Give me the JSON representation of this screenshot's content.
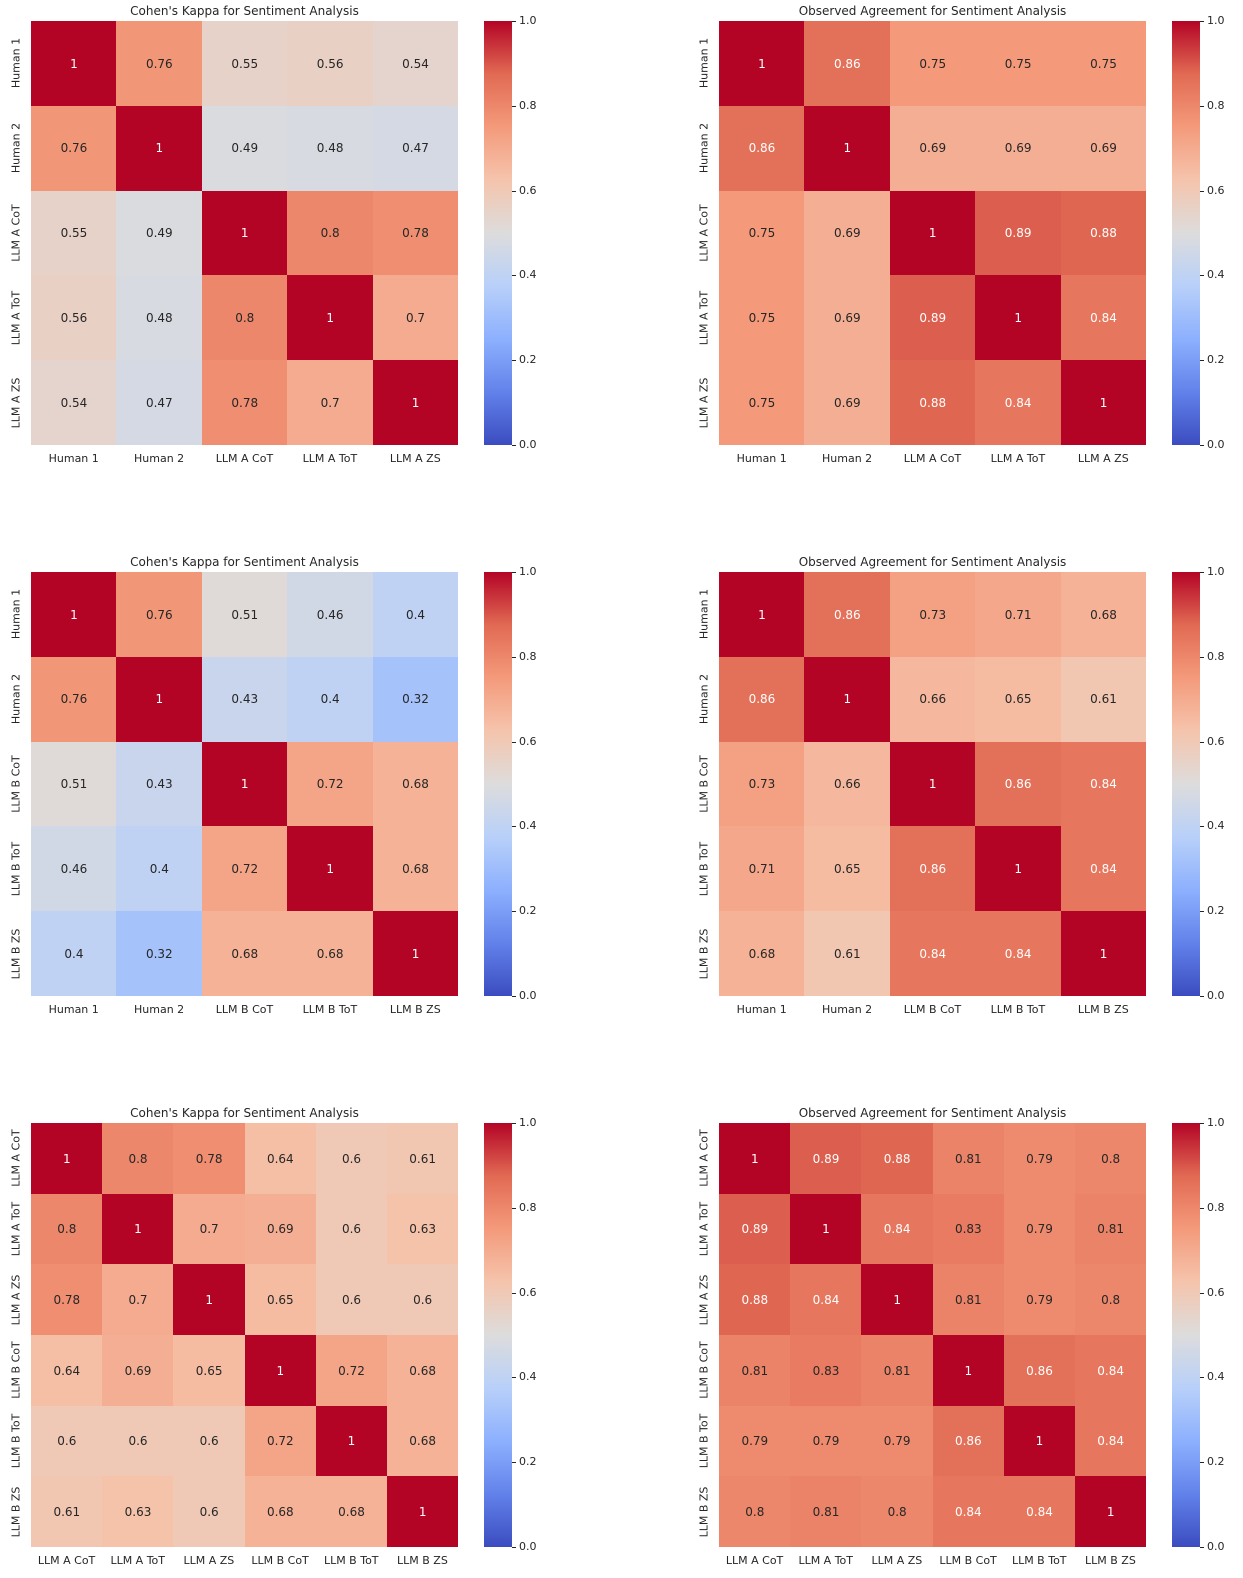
{
  "chart_data": [
    {
      "type": "heatmap",
      "title": "Cohen's Kappa for Sentiment Analysis",
      "row_labels": [
        "Human 1",
        "Human 2",
        "LLM A CoT",
        "LLM A ToT",
        "LLM A ZS"
      ],
      "col_labels": [
        "Human 1",
        "Human 2",
        "LLM A CoT",
        "LLM A ToT",
        "LLM A ZS"
      ],
      "values": [
        [
          1,
          0.76,
          0.55,
          0.56,
          0.54
        ],
        [
          0.76,
          1,
          0.49,
          0.48,
          0.47
        ],
        [
          0.55,
          0.49,
          1,
          0.8,
          0.78
        ],
        [
          0.56,
          0.48,
          0.8,
          1,
          0.7
        ],
        [
          0.54,
          0.47,
          0.78,
          0.7,
          1
        ]
      ],
      "colormap": "coolwarm",
      "vmin": 0,
      "vmax": 1,
      "colorbar_ticks": [
        "0.0",
        "0.2",
        "0.4",
        "0.6",
        "0.8",
        "1.0"
      ]
    },
    {
      "type": "heatmap",
      "title": "Observed Agreement for Sentiment Analysis",
      "row_labels": [
        "Human 1",
        "Human 2",
        "LLM A CoT",
        "LLM A ToT",
        "LLM A ZS"
      ],
      "col_labels": [
        "Human 1",
        "Human 2",
        "LLM A CoT",
        "LLM A ToT",
        "LLM A ZS"
      ],
      "values": [
        [
          1,
          0.86,
          0.75,
          0.75,
          0.75
        ],
        [
          0.86,
          1,
          0.69,
          0.69,
          0.69
        ],
        [
          0.75,
          0.69,
          1,
          0.89,
          0.88
        ],
        [
          0.75,
          0.69,
          0.89,
          1,
          0.84
        ],
        [
          0.75,
          0.69,
          0.88,
          0.84,
          1
        ]
      ],
      "colormap": "coolwarm",
      "vmin": 0,
      "vmax": 1,
      "colorbar_ticks": [
        "0.0",
        "0.2",
        "0.4",
        "0.6",
        "0.8",
        "1.0"
      ]
    },
    {
      "type": "heatmap",
      "title": "Cohen's Kappa for Sentiment Analysis",
      "row_labels": [
        "Human 1",
        "Human 2",
        "LLM B CoT",
        "LLM B ToT",
        "LLM B ZS"
      ],
      "col_labels": [
        "Human 1",
        "Human 2",
        "LLM B CoT",
        "LLM B ToT",
        "LLM B ZS"
      ],
      "values": [
        [
          1,
          0.76,
          0.51,
          0.46,
          0.4
        ],
        [
          0.76,
          1,
          0.43,
          0.4,
          0.32
        ],
        [
          0.51,
          0.43,
          1,
          0.72,
          0.68
        ],
        [
          0.46,
          0.4,
          0.72,
          1,
          0.68
        ],
        [
          0.4,
          0.32,
          0.68,
          0.68,
          1
        ]
      ],
      "colormap": "coolwarm",
      "vmin": 0,
      "vmax": 1,
      "colorbar_ticks": [
        "0.0",
        "0.2",
        "0.4",
        "0.6",
        "0.8",
        "1.0"
      ]
    },
    {
      "type": "heatmap",
      "title": "Observed Agreement for Sentiment Analysis",
      "row_labels": [
        "Human 1",
        "Human 2",
        "LLM B CoT",
        "LLM B ToT",
        "LLM B ZS"
      ],
      "col_labels": [
        "Human 1",
        "Human 2",
        "LLM B CoT",
        "LLM B ToT",
        "LLM B ZS"
      ],
      "values": [
        [
          1,
          0.86,
          0.73,
          0.71,
          0.68
        ],
        [
          0.86,
          1,
          0.66,
          0.65,
          0.61
        ],
        [
          0.73,
          0.66,
          1,
          0.86,
          0.84
        ],
        [
          0.71,
          0.65,
          0.86,
          1,
          0.84
        ],
        [
          0.68,
          0.61,
          0.84,
          0.84,
          1
        ]
      ],
      "colormap": "coolwarm",
      "vmin": 0,
      "vmax": 1,
      "colorbar_ticks": [
        "0.0",
        "0.2",
        "0.4",
        "0.6",
        "0.8",
        "1.0"
      ]
    },
    {
      "type": "heatmap",
      "title": "Cohen's Kappa for Sentiment Analysis",
      "row_labels": [
        "LLM A CoT",
        "LLM A ToT",
        "LLM A ZS",
        "LLM B CoT",
        "LLM B ToT",
        "LLM B ZS"
      ],
      "col_labels": [
        "LLM A CoT",
        "LLM A ToT",
        "LLM A ZS",
        "LLM B CoT",
        "LLM B ToT",
        "LLM B ZS"
      ],
      "values": [
        [
          1,
          0.8,
          0.78,
          0.64,
          0.6,
          0.61
        ],
        [
          0.8,
          1,
          0.7,
          0.69,
          0.6,
          0.63
        ],
        [
          0.78,
          0.7,
          1,
          0.65,
          0.6,
          0.6
        ],
        [
          0.64,
          0.69,
          0.65,
          1,
          0.72,
          0.68
        ],
        [
          0.6,
          0.6,
          0.6,
          0.72,
          1,
          0.68
        ],
        [
          0.61,
          0.63,
          0.6,
          0.68,
          0.68,
          1
        ]
      ],
      "colormap": "coolwarm",
      "vmin": 0,
      "vmax": 1,
      "colorbar_ticks": [
        "0.0",
        "0.2",
        "0.4",
        "0.6",
        "0.8",
        "1.0"
      ]
    },
    {
      "type": "heatmap",
      "title": "Observed Agreement for Sentiment Analysis",
      "row_labels": [
        "LLM A CoT",
        "LLM A ToT",
        "LLM A ZS",
        "LLM B CoT",
        "LLM B ToT",
        "LLM B ZS"
      ],
      "col_labels": [
        "LLM A CoT",
        "LLM A ToT",
        "LLM A ZS",
        "LLM B CoT",
        "LLM B ToT",
        "LLM B ZS"
      ],
      "values": [
        [
          1,
          0.89,
          0.88,
          0.81,
          0.79,
          0.8
        ],
        [
          0.89,
          1,
          0.84,
          0.83,
          0.79,
          0.81
        ],
        [
          0.88,
          0.84,
          1,
          0.81,
          0.79,
          0.8
        ],
        [
          0.81,
          0.83,
          0.81,
          1,
          0.86,
          0.84
        ],
        [
          0.79,
          0.79,
          0.79,
          0.86,
          1,
          0.84
        ],
        [
          0.8,
          0.81,
          0.8,
          0.84,
          0.84,
          1
        ]
      ],
      "colormap": "coolwarm",
      "vmin": 0,
      "vmax": 1,
      "colorbar_ticks": [
        "0.0",
        "0.2",
        "0.4",
        "0.6",
        "0.8",
        "1.0"
      ]
    }
  ]
}
